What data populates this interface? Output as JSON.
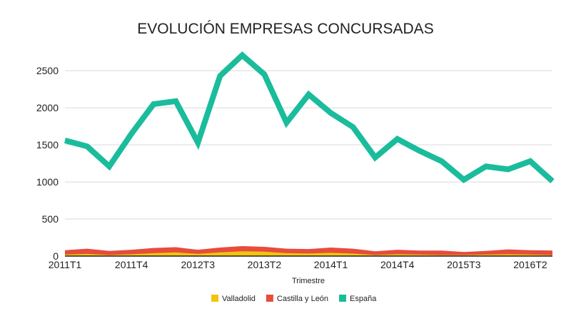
{
  "chart_data": {
    "type": "line",
    "title": "EVOLUCIÓN EMPRESAS CONCURSADAS",
    "xlabel": "Trimestre",
    "ylabel": "",
    "ylim": [
      0,
      2800
    ],
    "yticks": [
      0,
      500,
      1000,
      1500,
      2000,
      2500
    ],
    "grid": true,
    "legend_position": "bottom",
    "categories": [
      "2011T1",
      "2011T2",
      "2011T3",
      "2011T4",
      "2012T1",
      "2012T2",
      "2012T3",
      "2012T4",
      "2013T1",
      "2013T2",
      "2013T3",
      "2013T4",
      "2014T1",
      "2014T2",
      "2014T3",
      "2014T4",
      "2015T1",
      "2015T2",
      "2015T3",
      "2015T4",
      "2016T1",
      "2016T2",
      "2016T3"
    ],
    "x_tick_labels": [
      "2011T1",
      "2011T4",
      "2012T3",
      "2013T2",
      "2014T1",
      "2014T4",
      "2015T3",
      "2016T2"
    ],
    "series": [
      {
        "name": "Valladolid",
        "color": "#f1c40f",
        "style": "area",
        "values": [
          20,
          30,
          15,
          25,
          40,
          50,
          30,
          50,
          65,
          60,
          40,
          35,
          45,
          35,
          15,
          25,
          20,
          15,
          15,
          20,
          25,
          20,
          15
        ]
      },
      {
        "name": "Castilla y León",
        "color": "#e74c3c",
        "style": "area",
        "values": [
          80,
          100,
          70,
          85,
          110,
          120,
          85,
          115,
          135,
          125,
          100,
          95,
          115,
          100,
          65,
          85,
          75,
          75,
          55,
          70,
          90,
          80,
          75
        ]
      },
      {
        "name": "España",
        "color": "#1abc9c",
        "style": "line",
        "values": [
          1560,
          1480,
          1210,
          1650,
          2050,
          2090,
          1530,
          2430,
          2710,
          2450,
          1800,
          2180,
          1930,
          1740,
          1330,
          1580,
          1420,
          1280,
          1030,
          1210,
          1170,
          1280,
          1010
        ]
      }
    ]
  }
}
